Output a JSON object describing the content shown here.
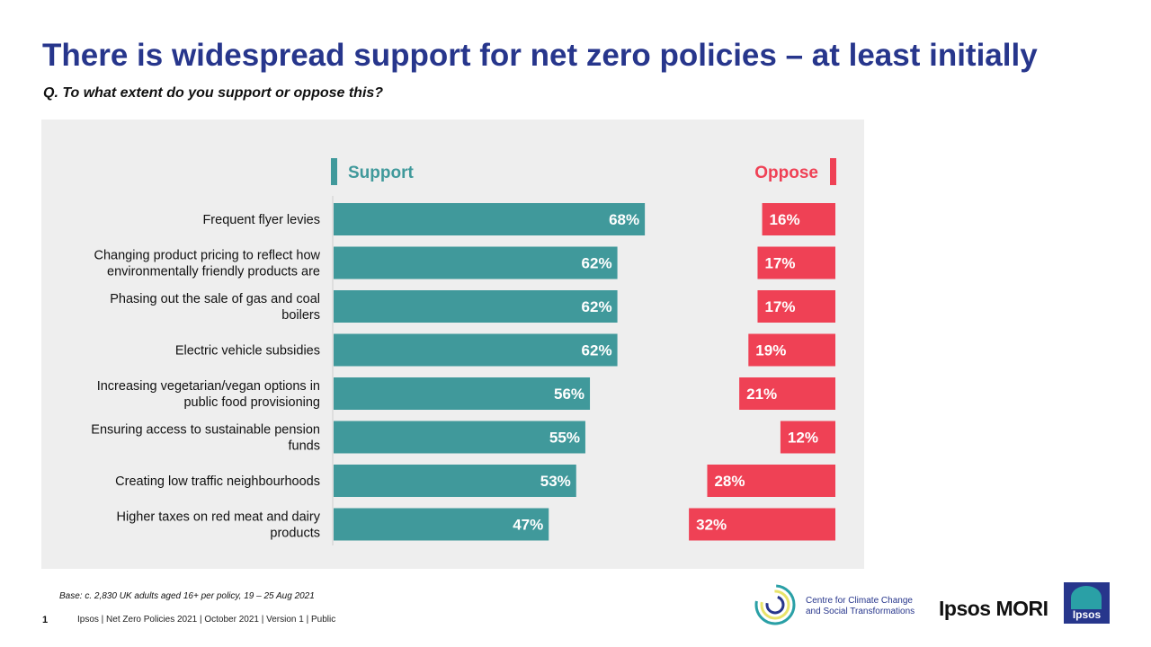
{
  "title": "There is widespread support for net zero policies – at least initially",
  "question": "Q. To what extent do you support or oppose this?",
  "base_note": "Base: c. 2,830 UK adults aged 16+ per policy,  19 – 25 Aug 2021",
  "page_number": "1",
  "footer_text": "Ipsos | Net Zero Policies 2021 | October 2021 | Version 1 | Public",
  "logos": {
    "cast_line1": "Centre for Climate Change",
    "cast_line2": "and Social Transformations",
    "ipsos_mori": "Ipsos MORI",
    "ipsos": "Ipsos"
  },
  "colors": {
    "support": "#40999b",
    "oppose": "#ef4155",
    "title": "#27368c"
  },
  "chart_data": {
    "type": "bar",
    "orientation": "horizontal",
    "categories": [
      "Frequent flyer levies",
      "Changing product pricing to reflect how environmentally friendly products are",
      "Phasing out the sale of gas and coal boilers",
      "Electric vehicle subsidies",
      "Increasing vegetarian/vegan options in public food provisioning",
      "Ensuring access to sustainable pension funds",
      "Creating low traffic neighbourhoods",
      "Higher taxes on red meat and dairy products"
    ],
    "category_lines": [
      [
        "Frequent flyer levies"
      ],
      [
        "Changing product pricing to reflect how",
        "environmentally friendly products are"
      ],
      [
        "Phasing out the sale of gas and coal",
        "boilers"
      ],
      [
        "Electric vehicle subsidies"
      ],
      [
        "Increasing vegetarian/vegan options in",
        "public food provisioning"
      ],
      [
        "Ensuring access to sustainable pension",
        "funds"
      ],
      [
        "Creating low traffic neighbourhoods"
      ],
      [
        "Higher taxes on red meat and dairy",
        "products"
      ]
    ],
    "series": [
      {
        "name": "Support",
        "values": [
          68,
          62,
          62,
          62,
          56,
          55,
          53,
          47
        ]
      },
      {
        "name": "Oppose",
        "values": [
          16,
          17,
          17,
          19,
          21,
          12,
          28,
          32
        ]
      }
    ],
    "value_suffix": "%",
    "legend": {
      "support": "Support",
      "oppose": "Oppose"
    }
  }
}
